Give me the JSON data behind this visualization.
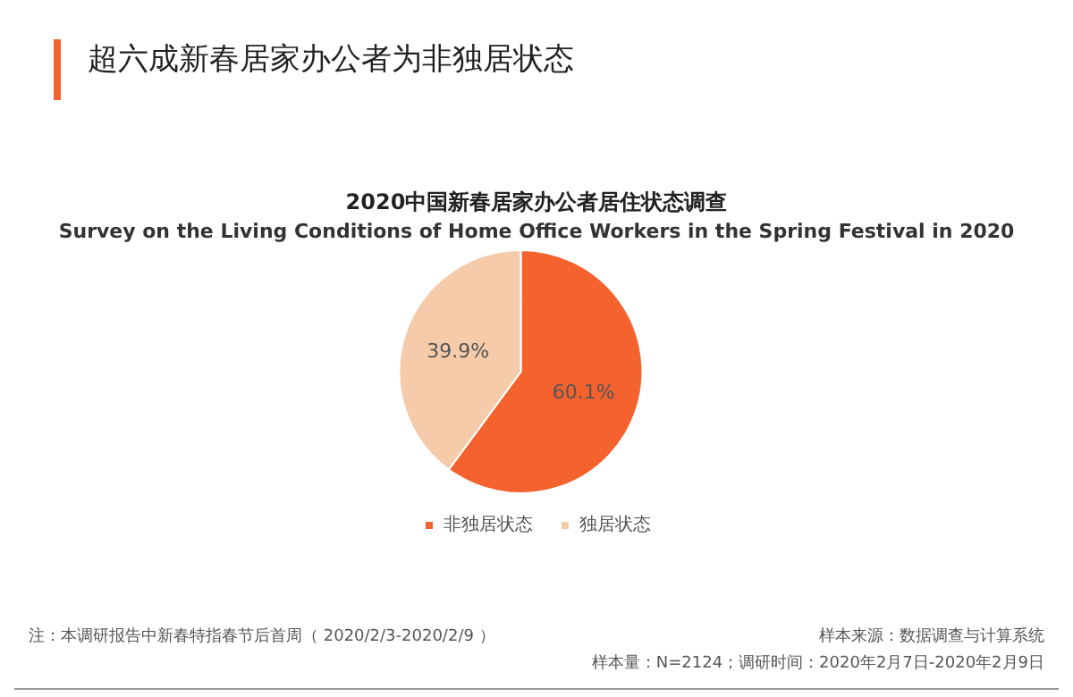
{
  "chart_data": {
    "type": "pie",
    "title": "超六成新春居家办公者为非独居状态",
    "subtitle": "2020中国新春居家办公者居住状态调查",
    "categories": [
      "非独居状态",
      "独居状态"
    ],
    "values": [
      60.1,
      39.9
    ],
    "colors": [
      "#f4622e",
      "#f6cbaa"
    ],
    "value_labels": [
      "60.1%",
      "39.9%"
    ],
    "legend": "bottom",
    "annotations": [
      "Survey on the Living Conditions of Home Office Workers in the Spring Festival in 2020",
      "注：本调研报告中新春特指春节后首周（ 2020/2/3-2020/2/9 ）",
      "样本来源：数据调查与计算系统",
      "样本量：N=2124；调研时间：2020年2月7日-2020年2月9日"
    ]
  }
}
